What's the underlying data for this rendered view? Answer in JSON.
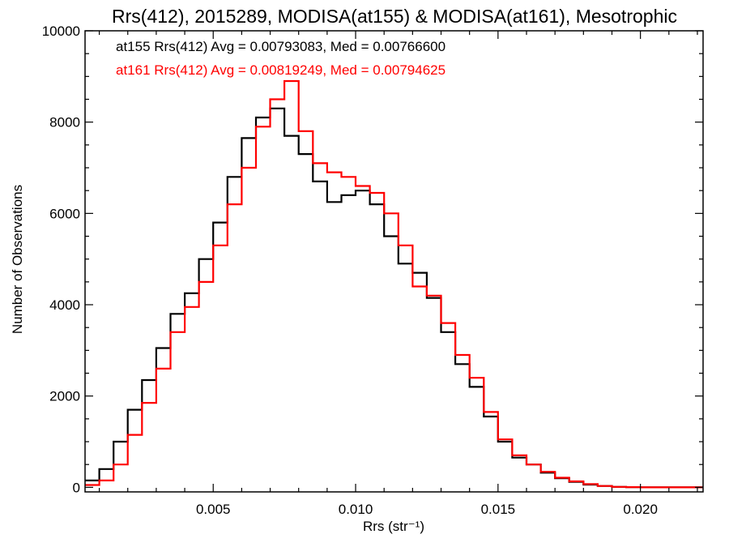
{
  "chart_data": {
    "type": "line",
    "step": true,
    "title": "Rrs(412), 2015289, MODISA(at155) & MODISA(at161), Mesotrophic",
    "xlabel": "Rrs (str⁻¹)",
    "ylabel": "Number of Observations",
    "xlim": [
      0.0005,
      0.0222
    ],
    "ylim": [
      -100,
      10000
    ],
    "xticks": [
      0.005,
      0.01,
      0.015,
      0.02
    ],
    "xtick_labels": [
      "0.005",
      "0.010",
      "0.015",
      "0.020"
    ],
    "yticks": [
      0,
      2000,
      4000,
      6000,
      8000,
      10000
    ],
    "ytick_labels": [
      "0",
      "2000",
      "4000",
      "6000",
      "8000",
      "10000"
    ],
    "grid": false,
    "legend_position": "top-left",
    "series": [
      {
        "name": "at155",
        "color": "#000000",
        "annotation": "at155 Rrs(412) Avg = 0.00793083, Med = 0.00766600",
        "x": [
          0.0005,
          0.001,
          0.0015,
          0.002,
          0.0025,
          0.003,
          0.0035,
          0.004,
          0.0045,
          0.005,
          0.0055,
          0.006,
          0.0065,
          0.007,
          0.0075,
          0.008,
          0.0085,
          0.009,
          0.0095,
          0.01,
          0.0105,
          0.011,
          0.0115,
          0.012,
          0.0125,
          0.013,
          0.0135,
          0.014,
          0.0145,
          0.015,
          0.0155,
          0.016,
          0.0165,
          0.017,
          0.0175,
          0.018,
          0.0185,
          0.019,
          0.0195,
          0.02,
          0.021,
          0.022
        ],
        "y": [
          150,
          400,
          1000,
          1700,
          2350,
          3050,
          3800,
          4250,
          5000,
          5800,
          6800,
          7650,
          8100,
          8300,
          7700,
          7300,
          6700,
          6250,
          6400,
          6500,
          6200,
          5500,
          4900,
          4700,
          4150,
          3400,
          2700,
          2200,
          1550,
          1000,
          650,
          500,
          320,
          200,
          120,
          60,
          30,
          10,
          5,
          0,
          0,
          0
        ]
      },
      {
        "name": "at161",
        "color": "#ff0000",
        "annotation": "at161 Rrs(412) Avg = 0.00819249, Med = 0.00794625",
        "x": [
          0.0005,
          0.001,
          0.0015,
          0.002,
          0.0025,
          0.003,
          0.0035,
          0.004,
          0.0045,
          0.005,
          0.0055,
          0.006,
          0.0065,
          0.007,
          0.0075,
          0.008,
          0.0085,
          0.009,
          0.0095,
          0.01,
          0.0105,
          0.011,
          0.0115,
          0.012,
          0.0125,
          0.013,
          0.0135,
          0.014,
          0.0145,
          0.015,
          0.0155,
          0.016,
          0.0165,
          0.017,
          0.0175,
          0.018,
          0.0185,
          0.019,
          0.0195,
          0.02,
          0.021,
          0.022
        ],
        "y": [
          50,
          150,
          500,
          1150,
          1850,
          2600,
          3400,
          3950,
          4500,
          5300,
          6200,
          7000,
          7900,
          8500,
          8900,
          7800,
          7100,
          6900,
          6800,
          6600,
          6450,
          6000,
          5300,
          4400,
          4200,
          3600,
          2900,
          2400,
          1650,
          1050,
          700,
          500,
          340,
          210,
          130,
          70,
          30,
          10,
          5,
          0,
          0,
          0
        ]
      }
    ]
  }
}
